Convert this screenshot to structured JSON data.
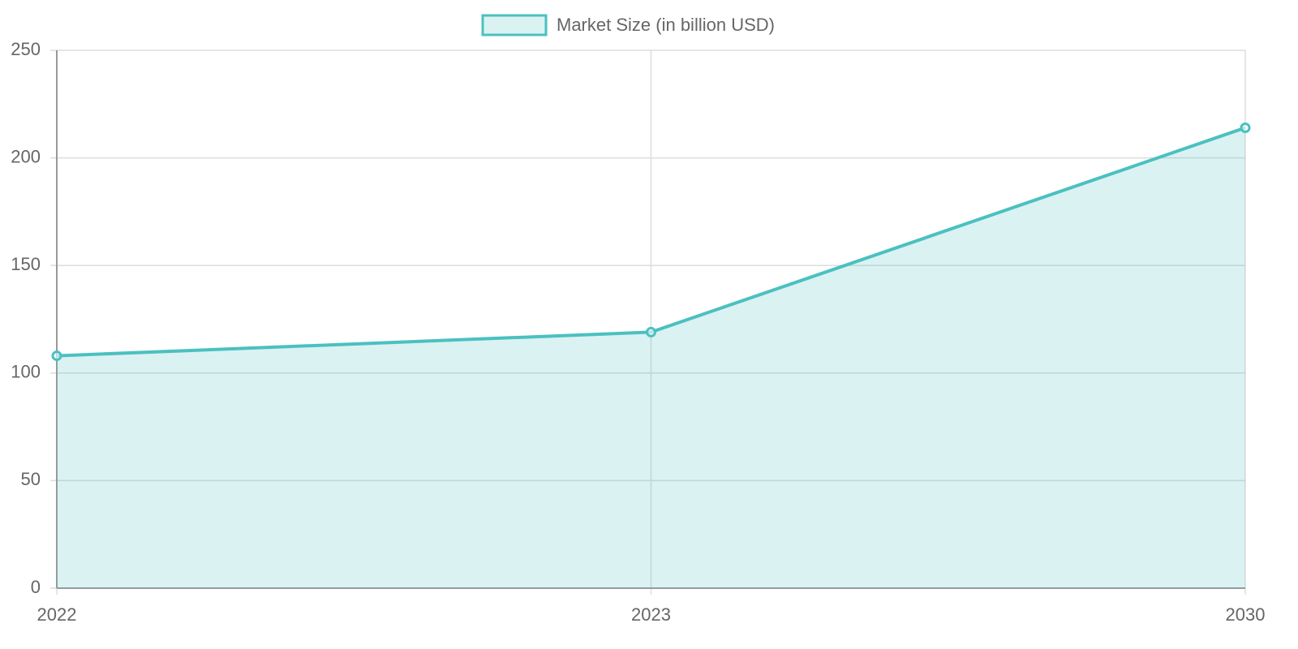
{
  "chart_data": {
    "type": "area",
    "categories": [
      "2022",
      "2023",
      "2030"
    ],
    "series": [
      {
        "name": "Market Size (in billion USD)",
        "color": "#4bc0c0",
        "values": [
          108,
          119,
          214
        ]
      }
    ],
    "ylim": [
      0,
      250
    ],
    "yticks": [
      0,
      50,
      100,
      150,
      200,
      250
    ],
    "grid": true,
    "legend": "top"
  }
}
